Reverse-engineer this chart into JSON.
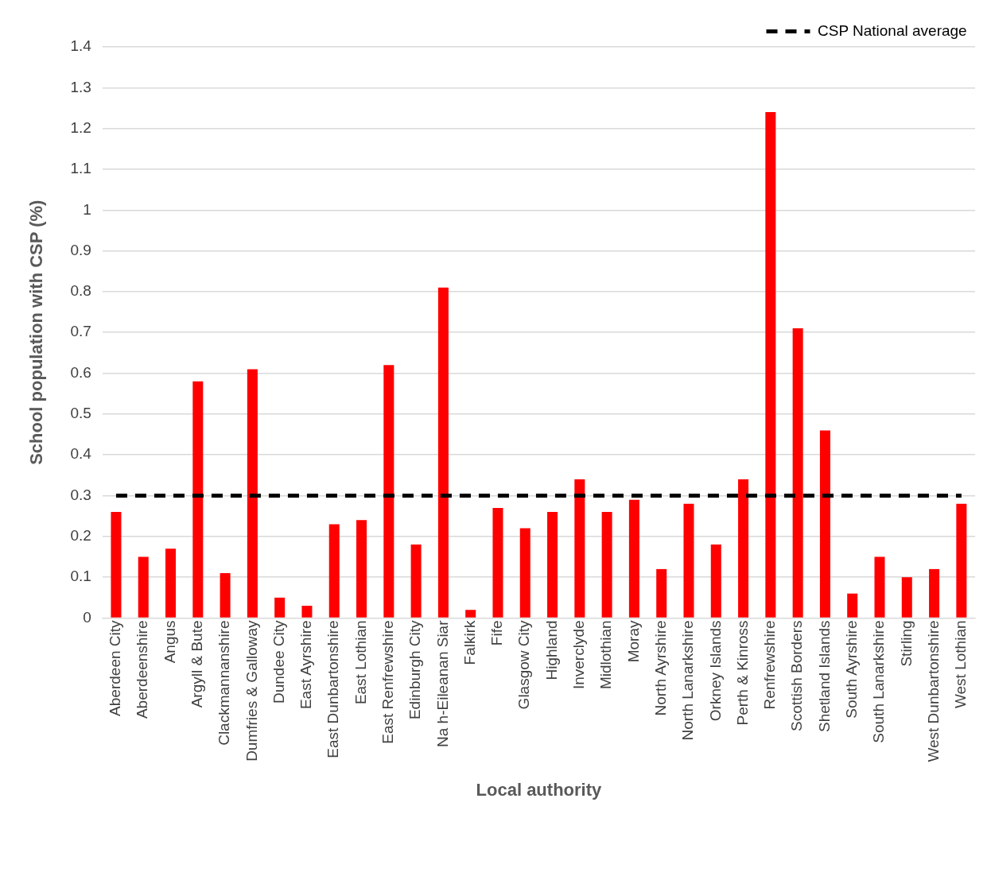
{
  "chart_data": {
    "type": "bar",
    "xlabel": "Local authority",
    "ylabel": "School population with CSP (%)",
    "categories": [
      "Aberdeen City",
      "Aberdeenshire",
      "Angus",
      "Argyll & Bute",
      "Clackmannanshire",
      "Dumfries & Galloway",
      "Dundee City",
      "East Ayrshire",
      "East Dunbartonshire",
      "East Lothian",
      "East Renfrewshire",
      "Edinburgh City",
      "Na h-Eileanan Siar",
      "Falkirk",
      "Fife",
      "Glasgow City",
      "Highland",
      "Inverclyde",
      "Midlothian",
      "Moray",
      "North Ayrshire",
      "North Lanarkshire",
      "Orkney Islands",
      "Perth & Kinross",
      "Renfrewshire",
      "Scottish Borders",
      "Shetland Islands",
      "South Ayrshire",
      "South Lanarkshire",
      "Stirling",
      "West Dunbartonshire",
      "West Lothian"
    ],
    "series": [
      {
        "color": "#ff0000",
        "values": [
          0.26,
          0.15,
          0.17,
          0.58,
          0.11,
          0.61,
          0.05,
          0.03,
          0.23,
          0.24,
          0.62,
          0.18,
          0.81,
          0.02,
          0.27,
          0.22,
          0.26,
          0.34,
          0.26,
          0.29,
          0.12,
          0.28,
          0.18,
          0.34,
          1.24,
          0.71,
          0.46,
          0.06,
          0.15,
          0.1,
          0.12,
          0.28
        ]
      },
      {
        "type": "line",
        "name": "CSP National average",
        "color": "#000000",
        "line_style": "dashed",
        "marker": "none",
        "values": [
          0.3,
          0.3,
          0.3,
          0.3,
          0.3,
          0.3,
          0.3,
          0.3,
          0.3,
          0.3,
          0.3,
          0.3,
          0.3,
          0.3,
          0.3,
          0.3,
          0.3,
          0.3,
          0.3,
          0.3,
          0.3,
          0.3,
          0.3,
          0.3,
          0.3,
          0.3,
          0.3,
          0.3,
          0.3,
          0.3,
          0.3,
          0.3
        ]
      }
    ],
    "ylim": [
      0,
      1.4
    ],
    "yticks": [
      0,
      0.1,
      0.2,
      0.3,
      0.4,
      0.5,
      0.6,
      0.7,
      0.8,
      0.9,
      1,
      1.1,
      1.2,
      1.3,
      1.4
    ],
    "grid": "y",
    "legend": "top right"
  }
}
